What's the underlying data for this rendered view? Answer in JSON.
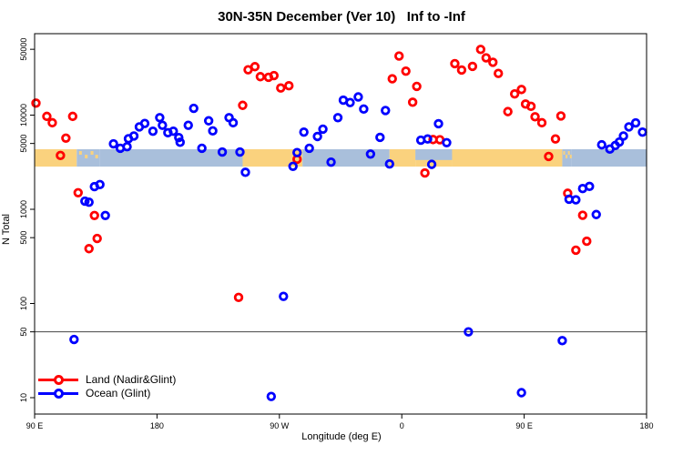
{
  "title": "30N-35N December (Ver 10)   Inf to -Inf",
  "axes": {
    "x_label": "Longitude (deg E)",
    "y_label": "N Total",
    "x_range_deg_e": [
      90,
      540
    ],
    "x_ticks": [
      {
        "value": 90,
        "label": "90 E"
      },
      {
        "value": 180,
        "label": "180"
      },
      {
        "value": 270,
        "label": "90 W"
      },
      {
        "value": 360,
        "label": "0"
      },
      {
        "value": 450,
        "label": "90 E"
      },
      {
        "value": 540,
        "label": "180"
      }
    ],
    "y_scale": "log",
    "y_ticks": [
      {
        "value": 10,
        "label": "10"
      },
      {
        "value": 50,
        "label": "50"
      },
      {
        "value": 100,
        "label": "100"
      },
      {
        "value": 500,
        "label": "500"
      },
      {
        "value": 1000,
        "label": "1000"
      },
      {
        "value": 5000,
        "label": "5000"
      },
      {
        "value": 10000,
        "label": "10000"
      },
      {
        "value": 50000,
        "label": "50000"
      }
    ],
    "grid": "off"
  },
  "reference_line": {
    "y_value": 50,
    "color": "#444444"
  },
  "land_ocean_band": {
    "top_n": 4340,
    "bottom_n": 2840,
    "land_color": "#FAD27E",
    "ocean_color": "#A9BFDB",
    "segments": [
      {
        "from": 90,
        "to": 121,
        "kind": "land"
      },
      {
        "from": 121,
        "to": 138,
        "kind": "islands"
      },
      {
        "from": 138,
        "to": 243,
        "kind": "ocean"
      },
      {
        "from": 243,
        "to": 287,
        "kind": "land"
      },
      {
        "from": 287,
        "to": 351,
        "kind": "ocean"
      },
      {
        "from": 351,
        "to": 370,
        "kind": "land"
      },
      {
        "from": 370,
        "to": 397,
        "kind": "sea_over_land"
      },
      {
        "from": 397,
        "to": 478,
        "kind": "land"
      },
      {
        "from": 478,
        "to": 485,
        "kind": "islands"
      },
      {
        "from": 485,
        "to": 540,
        "kind": "ocean"
      }
    ]
  },
  "legend": {
    "items": [
      {
        "label": "Land (Nadir&Glint)",
        "color": "#FF0000"
      },
      {
        "label": "Ocean (Glint)",
        "color": "#0000FF"
      }
    ]
  },
  "chart_data": {
    "type": "scatter",
    "xlabel": "Longitude (deg E)",
    "ylabel": "N Total",
    "x_axis_deg_e": [
      90,
      540
    ],
    "y_axis_log_range": [
      6.7,
      73000
    ],
    "title": "30N-35N December (Ver 10)   Inf to -Inf",
    "marker": "open-circle",
    "series": [
      {
        "name": "Land (Nadir&Glint)",
        "color": "#FF0000",
        "points": [
          [
            91,
            13400
          ],
          [
            99,
            9700
          ],
          [
            103,
            8300
          ],
          [
            118,
            9700
          ],
          [
            113,
            5700
          ],
          [
            109,
            3730
          ],
          [
            122,
            1500
          ],
          [
            134,
            860
          ],
          [
            136,
            490
          ],
          [
            130,
            382
          ],
          [
            240,
            116
          ],
          [
            243,
            12700
          ],
          [
            247,
            30300
          ],
          [
            252,
            32700
          ],
          [
            256,
            25600
          ],
          [
            262,
            25200
          ],
          [
            266,
            26300
          ],
          [
            271,
            19400
          ],
          [
            277,
            20500
          ],
          [
            283,
            3400
          ],
          [
            353,
            24300
          ],
          [
            358,
            42400
          ],
          [
            363,
            29300
          ],
          [
            368,
            13700
          ],
          [
            371,
            20200
          ],
          [
            377,
            2430
          ],
          [
            383,
            5500
          ],
          [
            388,
            5480
          ],
          [
            399,
            35200
          ],
          [
            404,
            30100
          ],
          [
            412,
            32900
          ],
          [
            418,
            49800
          ],
          [
            422,
            40600
          ],
          [
            427,
            36400
          ],
          [
            431,
            27700
          ],
          [
            438,
            10900
          ],
          [
            443,
            16800
          ],
          [
            448,
            18700
          ],
          [
            451,
            13100
          ],
          [
            455,
            12400
          ],
          [
            458,
            9600
          ],
          [
            463,
            8300
          ],
          [
            477,
            9800
          ],
          [
            473,
            5590
          ],
          [
            468,
            3640
          ],
          [
            482,
            1480
          ],
          [
            493,
            865
          ],
          [
            496,
            458
          ],
          [
            488,
            368
          ]
        ]
      },
      {
        "name": "Ocean (Glint)",
        "color": "#0000FF",
        "points": [
          [
            148,
            4960
          ],
          [
            153,
            4450
          ],
          [
            158,
            4620
          ],
          [
            159,
            5620
          ],
          [
            163,
            6000
          ],
          [
            167,
            7500
          ],
          [
            171,
            8150
          ],
          [
            177,
            6750
          ],
          [
            182,
            9400
          ],
          [
            184,
            7800
          ],
          [
            188,
            6500
          ],
          [
            192,
            6750
          ],
          [
            196,
            5780
          ],
          [
            197,
            5150
          ],
          [
            203,
            7800
          ],
          [
            207,
            11800
          ],
          [
            213,
            4450
          ],
          [
            218,
            8700
          ],
          [
            221,
            6800
          ],
          [
            228,
            4060
          ],
          [
            233,
            9400
          ],
          [
            236,
            8300
          ],
          [
            241,
            4060
          ],
          [
            245,
            2470
          ],
          [
            264,
            10.3
          ],
          [
            273,
            119
          ],
          [
            280,
            2860
          ],
          [
            283,
            4000
          ],
          [
            288,
            6600
          ],
          [
            292,
            4450
          ],
          [
            298,
            5930
          ],
          [
            302,
            7100
          ],
          [
            308,
            3170
          ],
          [
            313,
            9400
          ],
          [
            317,
            14400
          ],
          [
            322,
            13600
          ],
          [
            328,
            15600
          ],
          [
            332,
            11600
          ],
          [
            337,
            3860
          ],
          [
            344,
            5800
          ],
          [
            348,
            11200
          ],
          [
            351,
            3030
          ],
          [
            374,
            5420
          ],
          [
            379,
            5580
          ],
          [
            382,
            3000
          ],
          [
            387,
            8100
          ],
          [
            393,
            5100
          ],
          [
            409,
            50
          ],
          [
            127,
            1220
          ],
          [
            130,
            1190
          ],
          [
            134,
            1740
          ],
          [
            138,
            1830
          ],
          [
            142,
            860
          ],
          [
            119,
            41.5
          ],
          [
            448,
            11.3
          ],
          [
            478,
            40.3
          ],
          [
            483,
            1280
          ],
          [
            488,
            1260
          ],
          [
            493,
            1660
          ],
          [
            498,
            1750
          ],
          [
            503,
            880
          ],
          [
            507,
            4840
          ],
          [
            513,
            4360
          ],
          [
            517,
            4760
          ],
          [
            520,
            5180
          ],
          [
            523,
            6000
          ],
          [
            527,
            7500
          ],
          [
            532,
            8270
          ],
          [
            537,
            6600
          ]
        ]
      }
    ]
  }
}
